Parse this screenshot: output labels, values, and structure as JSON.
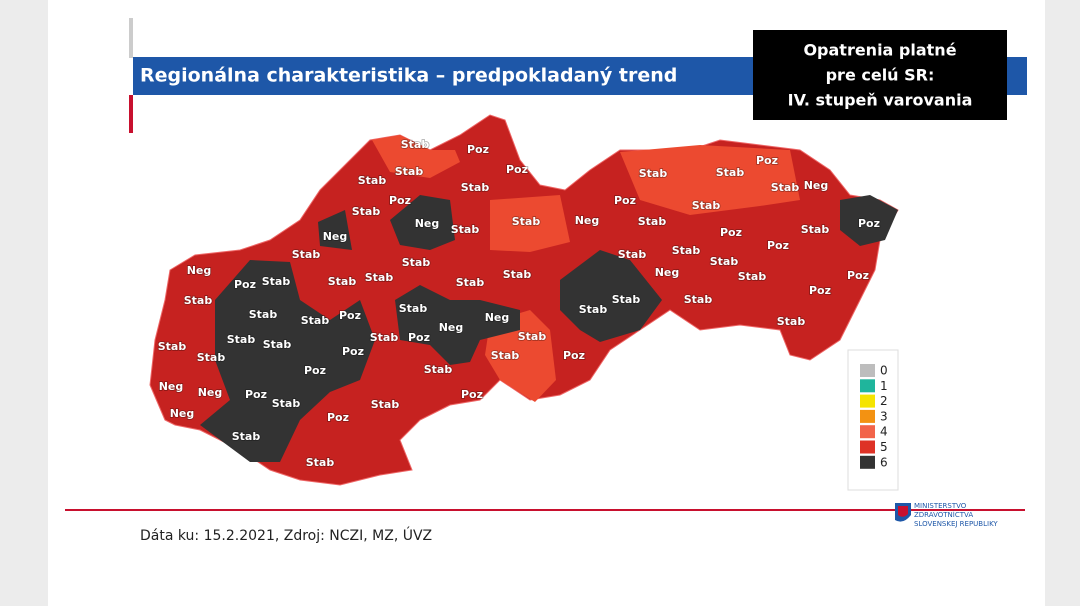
{
  "header": {
    "title": "Regionálna charakteristika – predpokladaný trend",
    "notice_lines": [
      "Opatrenia platné",
      "pre celú SR:",
      "IV. stupeň varovania"
    ]
  },
  "map": {
    "region_labels": [
      "Stab",
      "Poz",
      "Stab",
      "Poz",
      "Stab",
      "Stab",
      "Poz",
      "Stab",
      "Neg",
      "Stab",
      "Stab",
      "Neg",
      "Stab",
      "Stab",
      "Neg",
      "Stab",
      "Poz",
      "Stab",
      "Stab",
      "Stab",
      "Stab",
      "Stab",
      "Stab",
      "Poz",
      "Stab",
      "Stab",
      "Neg",
      "Neg",
      "Stab",
      "Stab",
      "Poz",
      "Stab",
      "Stab",
      "Stab",
      "Stab",
      "Stab",
      "Stab",
      "Poz",
      "Stab",
      "Poz",
      "Stab",
      "Poz",
      "Neg",
      "Neg",
      "Neg",
      "Poz",
      "Stab",
      "Stab",
      "Poz",
      "Stab",
      "Poz",
      "Stab",
      "Stab",
      "Poz",
      "Stab",
      "Stab",
      "Neg",
      "Poz",
      "Stab",
      "Stab",
      "Neg",
      "Poz",
      "Stab",
      "Poz",
      "Poz",
      "Stab",
      "Stab",
      "Stab",
      "Neg",
      "Stab",
      "Poz",
      "Stab",
      "Poz",
      "Stab"
    ]
  },
  "legend": {
    "items": [
      {
        "label": "0",
        "color": "#bdbdbd"
      },
      {
        "label": "1",
        "color": "#1fb59c"
      },
      {
        "label": "2",
        "color": "#f5e400"
      },
      {
        "label": "3",
        "color": "#f39212"
      },
      {
        "label": "4",
        "color": "#f2644a"
      },
      {
        "label": "5",
        "color": "#de3226"
      },
      {
        "label": "6",
        "color": "#333333"
      }
    ]
  },
  "footer": {
    "source": "Dáta ku: 15.2.2021, Zdroj: NCZI, MZ, ÚVZ",
    "logo_lines": [
      "MINISTERSTVO",
      "ZDRAVOTNÍCTVA",
      "SLOVENSKEJ REPUBLIKY"
    ]
  }
}
